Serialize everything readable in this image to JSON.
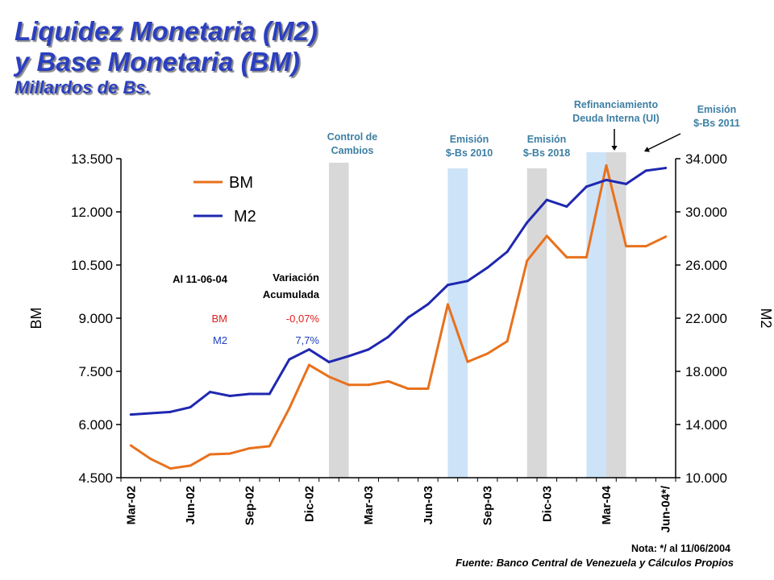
{
  "title": {
    "line1": "Liquidez Monetaria (M2)",
    "line2": "y Base Monetaria (BM)",
    "subtitle": "Millardos de Bs."
  },
  "colors": {
    "bm": "#e8711c",
    "m2": "#1f27b0",
    "band_gray": "#d8d8d8",
    "band_blue": "#cde3f7",
    "title": "#2b3fbf",
    "annotation": "#3d7fa3",
    "table_bm": "#e02020",
    "table_m2": "#1f3fbf"
  },
  "chart_data": {
    "type": "line",
    "title": "",
    "xlabel": "",
    "ylabel": "BM",
    "ylabel_right": "M2",
    "ylim": [
      4500,
      13500
    ],
    "ylim_right": [
      10000,
      34000
    ],
    "y_ticks": [
      "4.500",
      "6.000",
      "7.500",
      "9.000",
      "10.500",
      "12.000",
      "13.500"
    ],
    "y_ticks_right": [
      "10.000",
      "14.000",
      "18.000",
      "22.000",
      "26.000",
      "30.000",
      "34.000"
    ],
    "x_tick_labels": [
      "Mar-02",
      "Jun-02",
      "Sep-02",
      "Dic-02",
      "Mar-03",
      "Jun-03",
      "Sep-03",
      "Dic-03",
      "Mar-04",
      "Jun-04*/"
    ],
    "series": [
      {
        "name": "BM",
        "axis": "left",
        "values": [
          5410,
          5030,
          4760,
          4840,
          5160,
          5180,
          5330,
          5390,
          6460,
          7680,
          7350,
          7120,
          7120,
          7220,
          7010,
          7010,
          9390,
          7770,
          8000,
          8350,
          10620,
          11320,
          10720,
          10720,
          13310,
          11030,
          11030,
          11300
        ]
      },
      {
        "name": "M2",
        "axis": "left_scaled_right",
        "values": [
          14750,
          14850,
          14950,
          15300,
          16450,
          16150,
          16300,
          16300,
          18900,
          19650,
          18700,
          19150,
          19650,
          20600,
          22050,
          23050,
          24500,
          24800,
          25800,
          27000,
          29200,
          30900,
          30400,
          31900,
          32400,
          32100,
          33100,
          33300
        ]
      }
    ],
    "legend": [
      "BM",
      "M2"
    ],
    "legend_position": "top-left",
    "grid": false,
    "annotations": [
      {
        "text": [
          "Control de",
          "Cambios"
        ],
        "band": [
          10.5,
          11.5
        ],
        "color": "gray"
      },
      {
        "text": [
          "Emisión",
          "$-Bs 2010"
        ],
        "band": [
          16.5,
          17.5
        ],
        "color": "blue"
      },
      {
        "text": [
          "Emisión",
          "$-Bs 2018"
        ],
        "band": [
          20.5,
          21.5
        ],
        "color": "gray"
      },
      {
        "text": [
          "Refinanciamiento",
          "Deuda Interna (UI)"
        ],
        "band": [
          23.5,
          24.5
        ],
        "color": "blue"
      },
      {
        "text": [
          "Emisión",
          "$-Bs 2011"
        ],
        "band": [
          24.5,
          25.5
        ],
        "color": "gray"
      }
    ]
  },
  "table": {
    "col1": "Al 11-06-04",
    "col2_line1": "Variación",
    "col2_line2": "Acumulada",
    "rows": [
      {
        "label": "BM",
        "value": "-0,07%"
      },
      {
        "label": "M2",
        "value": "7,7%"
      }
    ]
  },
  "note": "Nota: */ al 11/06/2004",
  "source": "Fuente: Banco Central de Venezuela y Cálculos Propios"
}
